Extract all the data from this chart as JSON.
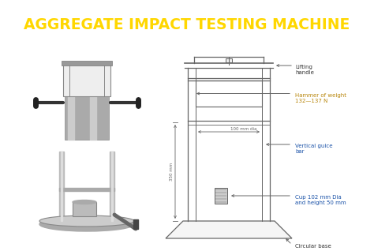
{
  "title": "AGGREGATE IMPACT TESTING MACHINE",
  "title_color": "#FFD700",
  "title_bg_color": "#990000",
  "bg_color": "#FFFFFF",
  "lc": "#666666",
  "labels": {
    "lifting_handle": "Lifting\nhandle",
    "hammer": "Hammer of weight\n132—137 N",
    "vertical_guide": "Vertical guice\nbar",
    "cup": "Cup 102 mm Dia\nand height 50 mm",
    "circular_base": "Circular base",
    "dim_100": "100 mm dia",
    "dim_350": "350 mm"
  },
  "label_color": "#333333",
  "label_color_hammer": "#B8860B",
  "label_color_guide": "#1a52a8",
  "label_color_cup": "#1a52a8",
  "title_fontsize": 13.5
}
